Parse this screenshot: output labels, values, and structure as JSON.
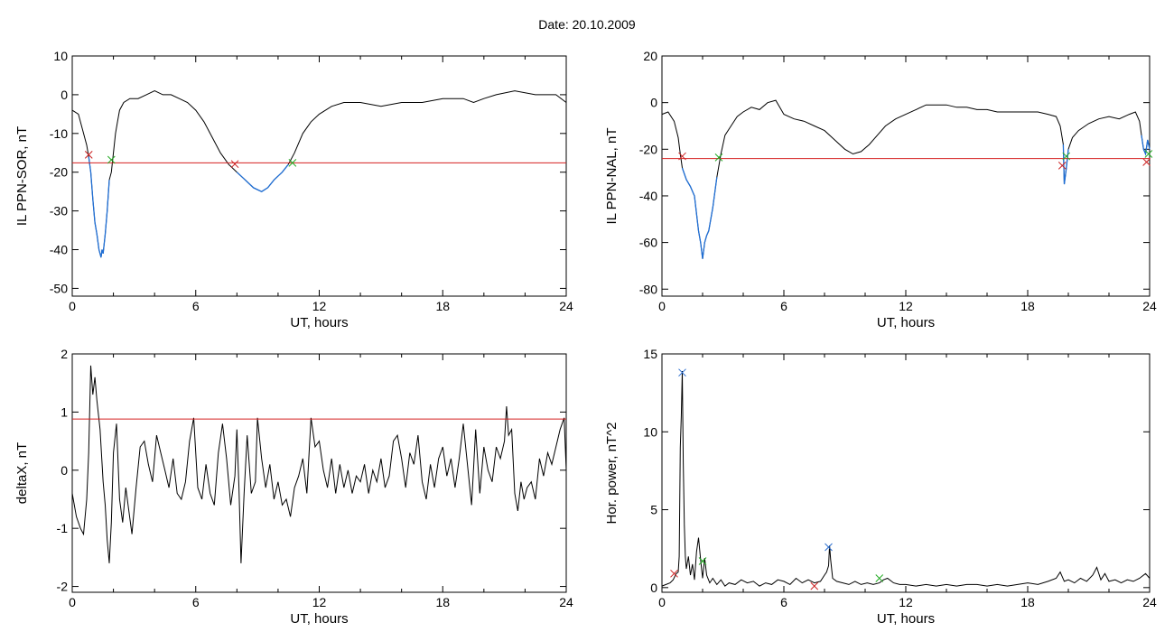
{
  "page": {
    "title": "Date:  20.10.2009"
  },
  "colors": {
    "axes": "#000000",
    "signal": "#000000",
    "threshold": "#d42020",
    "event": "#1f6fd6",
    "onset_marker": "#cc2222",
    "end_marker": "#22aa22",
    "peak_marker": "#2c6fd0"
  },
  "chart_data": [
    {
      "id": "il-sor",
      "type": "line",
      "xlabel": "UT, hours",
      "ylabel": "IL PPN-SOR, nT",
      "xlim": [
        0,
        24
      ],
      "ylim": [
        -52,
        10
      ],
      "xticks": [
        0,
        6,
        12,
        18,
        24
      ],
      "xtick_labels": [
        "0",
        "6",
        "12",
        "18",
        "24"
      ],
      "yticks": [
        10,
        0,
        -10,
        -20,
        -30,
        -40,
        -50
      ],
      "ytick_labels": [
        "10",
        "0",
        "-10",
        "-20",
        "-30",
        "-40",
        "-50"
      ],
      "threshold": -17.6,
      "series": [
        {
          "x": [
            0,
            0.3,
            0.5,
            0.7,
            0.8,
            0.9,
            1.0,
            1.1,
            1.2,
            1.3,
            1.4,
            1.45,
            1.5,
            1.6,
            1.7,
            1.8,
            1.9,
            2.0,
            2.1,
            2.2,
            2.3,
            2.5,
            2.8,
            3.2,
            3.6,
            4.0,
            4.4,
            4.8,
            5.2,
            5.6,
            6.0,
            6.4,
            6.8,
            7.2,
            7.6,
            8.0,
            8.4,
            8.8,
            9.2,
            9.5,
            9.8,
            10.2,
            10.5,
            10.8,
            11.2,
            11.6,
            12.0,
            12.6,
            13.2,
            14.0,
            15.0,
            16.0,
            17.0,
            18.0,
            19.0,
            19.5,
            20.0,
            20.6,
            21.5,
            22.5,
            23.5,
            24.0
          ],
          "y": [
            -4,
            -5,
            -9,
            -13,
            -16,
            -20,
            -27,
            -33,
            -36,
            -40,
            -42,
            -40,
            -41,
            -36,
            -30,
            -22,
            -20,
            -15,
            -10,
            -7,
            -4,
            -2,
            -1,
            -1,
            0,
            1,
            0,
            0,
            -1,
            -2,
            -4,
            -7,
            -11,
            -15,
            -18,
            -20,
            -22,
            -24,
            -25,
            -24,
            -22,
            -20,
            -18,
            -15,
            -10,
            -7,
            -5,
            -3,
            -2,
            -2,
            -3,
            -2,
            -2,
            -1,
            -1,
            -2,
            -1,
            0,
            1,
            0,
            0,
            -2
          ]
        }
      ],
      "events": [
        [
          0.8,
          1.85
        ],
        [
          7.9,
          10.7
        ]
      ],
      "markers": [
        {
          "x": 0.8,
          "y": -15.5,
          "kind": "onset"
        },
        {
          "x": 1.9,
          "y": -16.8,
          "kind": "end"
        },
        {
          "x": 7.9,
          "y": -17.9,
          "kind": "onset"
        },
        {
          "x": 10.7,
          "y": -17.6,
          "kind": "end"
        }
      ]
    },
    {
      "id": "il-nal",
      "type": "line",
      "xlabel": "UT, hours",
      "ylabel": "IL PPN-NAL, nT",
      "xlim": [
        0,
        24
      ],
      "ylim": [
        -83,
        20
      ],
      "xticks": [
        0,
        6,
        12,
        18,
        24
      ],
      "xtick_labels": [
        "0",
        "6",
        "12",
        "18",
        "24"
      ],
      "yticks": [
        20,
        0,
        -20,
        -40,
        -60,
        -80
      ],
      "ytick_labels": [
        "20",
        "0",
        "-20",
        "-40",
        "-60",
        "-80"
      ],
      "threshold": -24,
      "series": [
        {
          "x": [
            0,
            0.3,
            0.6,
            0.8,
            0.9,
            1.0,
            1.2,
            1.4,
            1.6,
            1.8,
            1.9,
            2.0,
            2.1,
            2.2,
            2.3,
            2.5,
            2.7,
            2.9,
            3.1,
            3.4,
            3.7,
            4.0,
            4.4,
            4.8,
            5.2,
            5.6,
            6.0,
            6.5,
            7.0,
            7.5,
            8.0,
            8.5,
            9.0,
            9.4,
            9.8,
            10.2,
            10.6,
            11.0,
            11.5,
            12.0,
            12.5,
            13.0,
            13.5,
            14.0,
            14.5,
            15.0,
            15.5,
            16.0,
            16.5,
            17.0,
            17.5,
            18.0,
            18.5,
            19.0,
            19.4,
            19.6,
            19.75,
            19.8,
            19.9,
            20.0,
            20.2,
            20.5,
            21.0,
            21.5,
            22.0,
            22.5,
            23.0,
            23.3,
            23.5,
            23.6,
            23.7,
            23.8,
            23.9,
            24.0
          ],
          "y": [
            -5,
            -4,
            -8,
            -15,
            -22,
            -28,
            -33,
            -36,
            -40,
            -55,
            -60,
            -67,
            -60,
            -57,
            -55,
            -45,
            -32,
            -22,
            -14,
            -10,
            -6,
            -4,
            -2,
            -3,
            0,
            1,
            -5,
            -7,
            -8,
            -10,
            -12,
            -16,
            -20,
            -22,
            -21,
            -18,
            -14,
            -10,
            -7,
            -5,
            -3,
            -1,
            -1,
            -1,
            -2,
            -2,
            -3,
            -3,
            -4,
            -4,
            -4,
            -4,
            -4,
            -5,
            -6,
            -10,
            -18,
            -35,
            -28,
            -20,
            -15,
            -12,
            -9,
            -7,
            -6,
            -7,
            -5,
            -4,
            -8,
            -14,
            -20,
            -22,
            -16,
            -20
          ]
        }
      ],
      "events": [
        [
          1.0,
          2.8
        ],
        [
          19.7,
          20.0
        ],
        [
          23.6,
          24.0
        ]
      ],
      "markers": [
        {
          "x": 1.0,
          "y": -23,
          "kind": "onset"
        },
        {
          "x": 2.8,
          "y": -23.5,
          "kind": "end"
        },
        {
          "x": 19.7,
          "y": -27,
          "kind": "onset"
        },
        {
          "x": 19.9,
          "y": -23,
          "kind": "end"
        },
        {
          "x": 23.85,
          "y": -25.5,
          "kind": "onset"
        },
        {
          "x": 23.95,
          "y": -22,
          "kind": "end"
        }
      ]
    },
    {
      "id": "deltax",
      "type": "line",
      "xlabel": "UT, hours",
      "ylabel": "deltaX, nT",
      "xlim": [
        0,
        24
      ],
      "ylim": [
        -2.1,
        2
      ],
      "xticks": [
        0,
        6,
        12,
        18,
        24
      ],
      "xtick_labels": [
        "0",
        "6",
        "12",
        "18",
        "24"
      ],
      "yticks": [
        2,
        1,
        0,
        -1,
        -2
      ],
      "ytick_labels": [
        "2",
        "1",
        "0",
        "-1",
        "-2"
      ],
      "threshold": 0.88,
      "series": [
        {
          "x": [
            0,
            0.2,
            0.4,
            0.55,
            0.7,
            0.8,
            0.9,
            1.0,
            1.1,
            1.2,
            1.35,
            1.5,
            1.6,
            1.7,
            1.8,
            1.9,
            2.0,
            2.15,
            2.3,
            2.45,
            2.6,
            2.75,
            2.9,
            3.1,
            3.3,
            3.5,
            3.7,
            3.9,
            4.1,
            4.3,
            4.5,
            4.7,
            4.9,
            5.1,
            5.3,
            5.5,
            5.7,
            5.9,
            6.1,
            6.3,
            6.5,
            6.7,
            6.9,
            7.1,
            7.3,
            7.5,
            7.7,
            7.9,
            8.0,
            8.1,
            8.2,
            8.35,
            8.5,
            8.7,
            8.9,
            9.0,
            9.2,
            9.4,
            9.6,
            9.8,
            10.0,
            10.2,
            10.4,
            10.6,
            10.8,
            11.0,
            11.2,
            11.4,
            11.6,
            11.8,
            12.0,
            12.2,
            12.4,
            12.6,
            12.8,
            13.0,
            13.2,
            13.4,
            13.6,
            13.8,
            14.0,
            14.2,
            14.4,
            14.6,
            14.8,
            15.0,
            15.2,
            15.4,
            15.6,
            15.8,
            16.0,
            16.2,
            16.4,
            16.6,
            16.8,
            17.0,
            17.2,
            17.4,
            17.6,
            17.8,
            18.0,
            18.2,
            18.4,
            18.6,
            18.8,
            19.0,
            19.2,
            19.4,
            19.6,
            19.8,
            20.0,
            20.2,
            20.4,
            20.6,
            20.8,
            21.0,
            21.1,
            21.2,
            21.35,
            21.5,
            21.65,
            21.8,
            21.95,
            22.1,
            22.3,
            22.5,
            22.7,
            22.9,
            23.1,
            23.3,
            23.5,
            23.7,
            23.9,
            24.0
          ],
          "y": [
            -0.4,
            -0.8,
            -1.0,
            -1.1,
            -0.5,
            0.3,
            1.8,
            1.3,
            1.6,
            1.2,
            0.7,
            -0.2,
            -0.6,
            -1.2,
            -1.6,
            -0.9,
            0.3,
            0.8,
            -0.5,
            -0.9,
            -0.3,
            -0.7,
            -1.1,
            -0.3,
            0.4,
            0.5,
            0.1,
            -0.2,
            0.6,
            0.3,
            0.0,
            -0.3,
            0.2,
            -0.4,
            -0.5,
            -0.2,
            0.5,
            0.9,
            -0.3,
            -0.5,
            0.1,
            -0.4,
            -0.6,
            0.3,
            0.8,
            0.2,
            -0.6,
            -0.1,
            0.7,
            -0.3,
            -1.6,
            -0.4,
            0.6,
            -0.4,
            -0.2,
            0.9,
            0.2,
            -0.3,
            0.1,
            -0.5,
            -0.2,
            -0.6,
            -0.5,
            -0.8,
            -0.3,
            -0.1,
            0.2,
            -0.4,
            0.9,
            0.4,
            0.5,
            0.0,
            -0.3,
            0.2,
            -0.4,
            0.1,
            -0.3,
            0.0,
            -0.4,
            -0.1,
            -0.2,
            0.1,
            -0.4,
            0.0,
            -0.2,
            0.2,
            -0.3,
            -0.1,
            0.5,
            0.6,
            0.2,
            -0.3,
            0.3,
            0.1,
            0.6,
            -0.2,
            -0.5,
            0.1,
            -0.3,
            0.2,
            0.4,
            -0.1,
            0.2,
            -0.3,
            0.2,
            0.8,
            0.1,
            -0.6,
            0.7,
            -0.4,
            0.4,
            0.0,
            -0.2,
            0.4,
            0.2,
            0.5,
            1.1,
            0.6,
            0.7,
            -0.4,
            -0.7,
            -0.2,
            -0.5,
            -0.3,
            -0.2,
            -0.5,
            0.2,
            -0.1,
            0.3,
            0.1,
            0.4,
            0.7,
            0.9,
            0.0
          ]
        }
      ],
      "events": [],
      "markers": []
    },
    {
      "id": "hor-power",
      "type": "line",
      "xlabel": "UT, hours",
      "ylabel": "Hor. power, nT^2",
      "xlim": [
        0,
        24
      ],
      "ylim": [
        -0.3,
        15
      ],
      "xticks": [
        0,
        6,
        12,
        18,
        24
      ],
      "xtick_labels": [
        "0",
        "6",
        "12",
        "18",
        "24"
      ],
      "yticks": [
        15,
        10,
        5,
        0
      ],
      "ytick_labels": [
        "15",
        "10",
        "5",
        "0"
      ],
      "threshold": null,
      "series": [
        {
          "x": [
            0,
            0.2,
            0.4,
            0.55,
            0.7,
            0.8,
            0.85,
            0.9,
            0.95,
            1.0,
            1.05,
            1.1,
            1.15,
            1.2,
            1.3,
            1.4,
            1.5,
            1.6,
            1.7,
            1.8,
            1.9,
            2.0,
            2.1,
            2.2,
            2.35,
            2.5,
            2.7,
            2.9,
            3.1,
            3.3,
            3.6,
            3.9,
            4.2,
            4.5,
            4.8,
            5.1,
            5.4,
            5.7,
            6.0,
            6.3,
            6.6,
            6.9,
            7.2,
            7.5,
            7.8,
            8.0,
            8.1,
            8.2,
            8.25,
            8.3,
            8.4,
            8.6,
            8.9,
            9.2,
            9.5,
            9.8,
            10.1,
            10.4,
            10.7,
            10.9,
            11.1,
            11.4,
            11.7,
            12.0,
            12.5,
            13.0,
            13.5,
            14.0,
            14.5,
            15.0,
            15.5,
            16.0,
            16.5,
            17.0,
            17.5,
            18.0,
            18.5,
            19.0,
            19.4,
            19.6,
            19.8,
            20.0,
            20.3,
            20.6,
            20.9,
            21.2,
            21.4,
            21.6,
            21.8,
            22.0,
            22.3,
            22.6,
            22.9,
            23.2,
            23.5,
            23.8,
            24.0
          ],
          "y": [
            0.1,
            0.2,
            0.3,
            0.5,
            0.9,
            1.0,
            2.0,
            9.0,
            11.0,
            13.9,
            8.0,
            4.0,
            2.0,
            1.2,
            2.0,
            0.8,
            1.5,
            0.5,
            2.3,
            3.2,
            1.8,
            0.6,
            1.9,
            0.8,
            0.3,
            0.6,
            0.2,
            0.5,
            0.1,
            0.3,
            0.2,
            0.5,
            0.3,
            0.4,
            0.1,
            0.3,
            0.2,
            0.5,
            0.4,
            0.2,
            0.6,
            0.3,
            0.5,
            0.3,
            0.4,
            0.8,
            1.0,
            1.4,
            2.7,
            1.8,
            0.6,
            0.4,
            0.3,
            0.2,
            0.4,
            0.2,
            0.3,
            0.2,
            0.3,
            0.5,
            0.6,
            0.3,
            0.2,
            0.2,
            0.1,
            0.2,
            0.1,
            0.2,
            0.1,
            0.2,
            0.2,
            0.1,
            0.2,
            0.1,
            0.2,
            0.3,
            0.2,
            0.4,
            0.6,
            1.0,
            0.4,
            0.5,
            0.3,
            0.6,
            0.4,
            0.8,
            1.3,
            0.5,
            0.9,
            0.4,
            0.5,
            0.3,
            0.5,
            0.4,
            0.6,
            0.9,
            0.6
          ]
        }
      ],
      "events": [],
      "markers": [
        {
          "x": 0.6,
          "y": 0.9,
          "kind": "onset"
        },
        {
          "x": 1.0,
          "y": 13.8,
          "kind": "peak"
        },
        {
          "x": 2.0,
          "y": 1.7,
          "kind": "end"
        },
        {
          "x": 7.5,
          "y": 0.1,
          "kind": "onset"
        },
        {
          "x": 8.2,
          "y": 2.6,
          "kind": "peak"
        },
        {
          "x": 10.7,
          "y": 0.6,
          "kind": "end"
        }
      ]
    }
  ]
}
